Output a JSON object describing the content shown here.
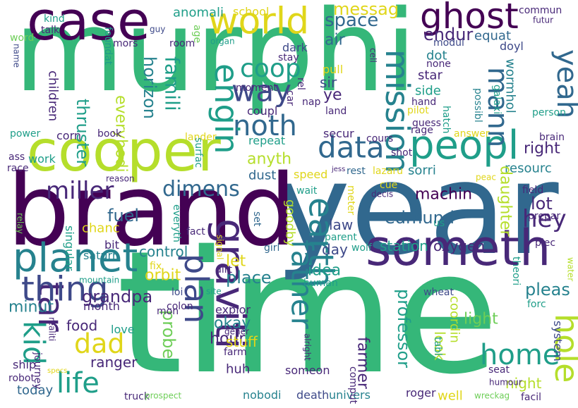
{
  "palette": {
    "purple": "#440154",
    "indigo": "#482878",
    "blue": "#3e4989",
    "steel": "#31688e",
    "teal": "#26828e",
    "cyan": "#1f9e89",
    "green": "#35b779",
    "lime": "#6ece58",
    "yellowgreen": "#b5de2b",
    "yellow": "#e0d61a"
  },
  "words": [
    {
      "text": "murphi",
      "color": "green"
    },
    {
      "text": "time",
      "color": "green"
    },
    {
      "text": "year",
      "color": "steel"
    },
    {
      "text": "brand",
      "color": "purple"
    },
    {
      "text": "cooper",
      "color": "yellowgreen"
    },
    {
      "text": "case",
      "color": "purple"
    },
    {
      "text": "someth",
      "color": "indigo"
    },
    {
      "text": "peopl",
      "color": "cyan"
    },
    {
      "text": "world",
      "color": "yellow"
    },
    {
      "text": "ghost",
      "color": "purple"
    },
    {
      "text": "planet",
      "color": "teal"
    },
    {
      "text": "data",
      "color": "steel"
    },
    {
      "text": "tar",
      "color": "indigo"
    },
    {
      "text": "graviti",
      "color": "indigo"
    },
    {
      "text": "earth",
      "color": "teal"
    },
    {
      "text": "thing",
      "color": "blue"
    },
    {
      "text": "father",
      "color": "teal"
    },
    {
      "text": "mission",
      "color": "teal"
    },
    {
      "text": "noth",
      "color": "steel"
    },
    {
      "text": "yeah",
      "color": "steel"
    },
    {
      "text": "dimens",
      "color": "steel"
    },
    {
      "text": "way",
      "color": "blue"
    },
    {
      "text": "coop",
      "color": "cyan"
    },
    {
      "text": "engin",
      "color": "cyan"
    },
    {
      "text": "miller",
      "color": "indigo"
    },
    {
      "text": "plan",
      "color": "blue"
    },
    {
      "text": "hole",
      "color": "yellowgreen"
    },
    {
      "text": "home",
      "color": "cyan"
    },
    {
      "text": "life",
      "color": "cyan"
    },
    {
      "text": "dad",
      "color": "yellow"
    },
    {
      "text": "kid",
      "color": "cyan"
    },
    {
      "text": "mann",
      "color": "steel"
    },
    {
      "text": "hey",
      "color": "indigo"
    },
    {
      "text": "space",
      "color": "steel"
    },
    {
      "text": "endur",
      "color": "indigo"
    },
    {
      "text": "messag",
      "color": "yellow"
    },
    {
      "text": "anomali",
      "color": "cyan"
    },
    {
      "text": "school",
      "color": "yellow"
    },
    {
      "text": "air",
      "color": "steel"
    },
    {
      "text": "equat",
      "color": "steel"
    },
    {
      "text": "famili",
      "color": "cyan"
    },
    {
      "text": "horizon",
      "color": "teal"
    },
    {
      "text": "children",
      "color": "indigo"
    },
    {
      "text": "thruster",
      "color": "cyan"
    },
    {
      "text": "everybodi",
      "color": "yellowgreen"
    },
    {
      "text": "corn",
      "color": "indigo"
    },
    {
      "text": "anyth",
      "color": "yellowgreen"
    },
    {
      "text": "right",
      "color": "indigo"
    },
    {
      "text": "resourc",
      "color": "teal"
    },
    {
      "text": "lot",
      "color": "indigo"
    },
    {
      "text": "daughter",
      "color": "yellowgreen"
    },
    {
      "text": "machin",
      "color": "purple"
    },
    {
      "text": "edmund",
      "color": "steel"
    },
    {
      "text": "fuel",
      "color": "steel"
    },
    {
      "text": "control",
      "color": "teal"
    },
    {
      "text": "orbit",
      "color": "yellow"
    },
    {
      "text": "let",
      "color": "yellow"
    },
    {
      "text": "place",
      "color": "teal"
    },
    {
      "text": "idea",
      "color": "cyan"
    },
    {
      "text": "day",
      "color": "blue"
    },
    {
      "text": "station",
      "color": "cyan"
    },
    {
      "text": "oxygen",
      "color": "indigo"
    },
    {
      "text": "law",
      "color": "blue"
    },
    {
      "text": "grandpa",
      "color": "indigo"
    },
    {
      "text": "minut",
      "color": "teal"
    },
    {
      "text": "food",
      "color": "indigo"
    },
    {
      "text": "probe",
      "color": "lime"
    },
    {
      "text": "hour",
      "color": "indigo"
    },
    {
      "text": "okay",
      "color": "teal"
    },
    {
      "text": "ranger",
      "color": "indigo"
    },
    {
      "text": "stuff",
      "color": "yellow"
    },
    {
      "text": "huh",
      "color": "indigo"
    },
    {
      "text": "farmer",
      "color": "indigo"
    },
    {
      "text": "professor",
      "color": "cyan"
    },
    {
      "text": "look",
      "color": "yellowgreen"
    },
    {
      "text": "coordin",
      "color": "yellowgreen"
    },
    {
      "text": "light",
      "color": "lime"
    },
    {
      "text": "pleas",
      "color": "teal"
    },
    {
      "text": "night",
      "color": "yellowgreen"
    },
    {
      "text": "today",
      "color": "steel"
    },
    {
      "text": "nobodi",
      "color": "teal"
    },
    {
      "text": "death",
      "color": "blue"
    },
    {
      "text": "univers",
      "color": "teal"
    },
    {
      "text": "roger",
      "color": "indigo"
    },
    {
      "text": "well",
      "color": "yellow"
    },
    {
      "text": "someon",
      "color": "indigo"
    },
    {
      "text": "system",
      "color": "blue"
    },
    {
      "text": "bit",
      "color": "indigo"
    },
    {
      "text": "saturn",
      "color": "teal"
    },
    {
      "text": "love",
      "color": "cyan"
    },
    {
      "text": "chanc",
      "color": "yellow"
    },
    {
      "text": "ship",
      "color": "indigo"
    },
    {
      "text": "robot",
      "color": "indigo"
    },
    {
      "text": "singular",
      "color": "cyan"
    },
    {
      "text": "everyth",
      "color": "cyan"
    },
    {
      "text": "goodby",
      "color": "yellowgreen"
    },
    {
      "text": "cours",
      "color": "indigo"
    },
    {
      "text": "repeat",
      "color": "cyan"
    },
    {
      "text": "dust",
      "color": "steel"
    },
    {
      "text": "sorri",
      "color": "teal"
    },
    {
      "text": "speed",
      "color": "yellow"
    },
    {
      "text": "rest",
      "color": "steel"
    },
    {
      "text": "lazaru",
      "color": "yellow"
    },
    {
      "text": "secur",
      "color": "indigo"
    },
    {
      "text": "star",
      "color": "indigo"
    },
    {
      "text": "side",
      "color": "cyan"
    },
    {
      "text": "ye",
      "color": "indigo"
    },
    {
      "text": "sir",
      "color": "blue"
    },
    {
      "text": "dot",
      "color": "teal"
    },
    {
      "text": "wormhol",
      "color": "teal"
    },
    {
      "text": "doyl",
      "color": "blue"
    },
    {
      "text": "dark",
      "color": "blue"
    },
    {
      "text": "pull",
      "color": "yellow"
    },
    {
      "text": "moment",
      "color": "indigo"
    },
    {
      "text": "coupl",
      "color": "indigo"
    },
    {
      "text": "car",
      "color": "indigo"
    },
    {
      "text": "work",
      "color": "cyan"
    },
    {
      "text": "race",
      "color": "indigo"
    },
    {
      "text": "shot",
      "color": "indigo"
    },
    {
      "text": "cue",
      "color": "yellow"
    },
    {
      "text": "parent",
      "color": "cyan"
    },
    {
      "text": "wolf",
      "color": "cyan"
    },
    {
      "text": "human",
      "color": "cyan"
    },
    {
      "text": "wheat",
      "color": "blue"
    },
    {
      "text": "month",
      "color": "indigo"
    },
    {
      "text": "explor",
      "color": "indigo"
    },
    {
      "text": "colon",
      "color": "indigo"
    },
    {
      "text": "loi",
      "color": "blue"
    },
    {
      "text": "fact",
      "color": "indigo"
    },
    {
      "text": "girl",
      "color": "steel"
    },
    {
      "text": "set",
      "color": "steel"
    },
    {
      "text": "us",
      "color": "cyan"
    },
    {
      "text": "field",
      "color": "indigo"
    },
    {
      "text": "prepar",
      "color": "indigo"
    },
    {
      "text": "piec",
      "color": "indigo"
    },
    {
      "text": "theori",
      "color": "cyan"
    },
    {
      "text": "forc",
      "color": "cyan"
    },
    {
      "text": "answer",
      "color": "yellow"
    },
    {
      "text": "brain",
      "color": "indigo"
    },
    {
      "text": "person",
      "color": "cyan"
    },
    {
      "text": "rage",
      "color": "indigo"
    },
    {
      "text": "hatch",
      "color": "cyan"
    },
    {
      "text": "galaxi",
      "color": "cyan"
    },
    {
      "text": "possibl",
      "color": "teal"
    },
    {
      "text": "guess",
      "color": "indigo"
    },
    {
      "text": "hand",
      "color": "indigo"
    },
    {
      "text": "pilot",
      "color": "yellow"
    },
    {
      "text": "modul",
      "color": "blue"
    },
    {
      "text": "none",
      "color": "indigo"
    },
    {
      "text": "commun",
      "color": "indigo"
    },
    {
      "text": "futur",
      "color": "indigo"
    },
    {
      "text": "land",
      "color": "indigo"
    },
    {
      "text": "nap",
      "color": "indigo"
    },
    {
      "text": "rel",
      "color": "indigo"
    },
    {
      "text": "stay",
      "color": "indigo"
    },
    {
      "text": "cell",
      "color": "indigo"
    },
    {
      "text": "room",
      "color": "indigo"
    },
    {
      "text": "mors",
      "color": "indigo"
    },
    {
      "text": "organ",
      "color": "cyan"
    },
    {
      "text": "age",
      "color": "lime"
    },
    {
      "text": "guy",
      "color": "blue"
    },
    {
      "text": "foundat",
      "color": "cyan"
    },
    {
      "text": "kind",
      "color": "cyan"
    },
    {
      "text": "talk",
      "color": "indigo"
    },
    {
      "text": "word",
      "color": "lime"
    },
    {
      "text": "name",
      "color": "blue"
    },
    {
      "text": "power",
      "color": "cyan"
    },
    {
      "text": "book",
      "color": "indigo"
    },
    {
      "text": "lander",
      "color": "yellow"
    },
    {
      "text": "surfac",
      "color": "cyan"
    },
    {
      "text": "ass",
      "color": "indigo"
    },
    {
      "text": "reason",
      "color": "indigo"
    },
    {
      "text": "jess",
      "color": "indigo"
    },
    {
      "text": "decis",
      "color": "indigo"
    },
    {
      "text": "meter",
      "color": "yellow"
    },
    {
      "text": "wait",
      "color": "cyan"
    },
    {
      "text": "peac",
      "color": "yellow"
    },
    {
      "text": "relay",
      "color": "lime"
    },
    {
      "text": "fix",
      "color": "yellow"
    },
    {
      "text": "signal",
      "color": "yellow"
    },
    {
      "text": "dirt",
      "color": "indigo"
    },
    {
      "text": "site",
      "color": "cyan"
    },
    {
      "text": "mon",
      "color": "indigo"
    },
    {
      "text": "realiti",
      "color": "indigo"
    },
    {
      "text": "mountain",
      "color": "cyan"
    },
    {
      "text": "journey",
      "color": "indigo"
    },
    {
      "text": "specs",
      "color": "yellow"
    },
    {
      "text": "gener",
      "color": "indigo"
    },
    {
      "text": "alright",
      "color": "indigo"
    },
    {
      "text": "farm",
      "color": "indigo"
    },
    {
      "text": "truck",
      "color": "indigo"
    },
    {
      "text": "prospect",
      "color": "lime"
    },
    {
      "text": "comput",
      "color": "indigo"
    },
    {
      "text": "tabl",
      "color": "cyan"
    },
    {
      "text": "seat",
      "color": "indigo"
    },
    {
      "text": "humour",
      "color": "indigo"
    },
    {
      "text": "facil",
      "color": "indigo"
    },
    {
      "text": "wreckag",
      "color": "lime"
    },
    {
      "text": "water",
      "color": "yellowgreen"
    }
  ]
}
